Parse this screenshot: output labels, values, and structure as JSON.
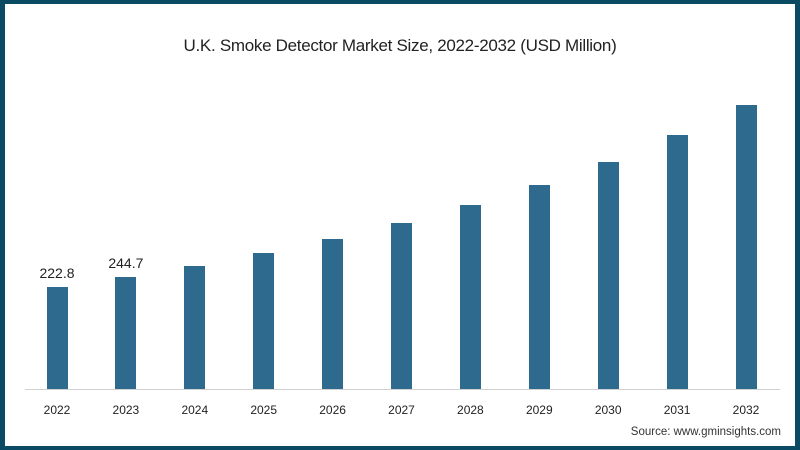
{
  "chart_data": {
    "type": "bar",
    "title": "U.K. Smoke Detector Market Size, 2022-2032 (USD Million)",
    "xlabel": "",
    "ylabel": "USD Million",
    "categories": [
      "2022",
      "2023",
      "2024",
      "2025",
      "2026",
      "2027",
      "2028",
      "2029",
      "2030",
      "2031",
      "2032"
    ],
    "values": [
      222.8,
      244.7,
      268.7,
      297.0,
      327.6,
      362.6,
      401.9,
      445.6,
      495.8,
      554.8,
      620.3
    ],
    "data_labels": {
      "0": "222.8",
      "1": "244.7"
    },
    "ylim": [
      0,
      650
    ],
    "grid": false,
    "bar_color": "#2e6a8e",
    "source": "Source: www.gminsights.com"
  },
  "colors": {
    "border": "#0b4a63",
    "bar": "#2e6a8e",
    "background": "#ffffff"
  }
}
